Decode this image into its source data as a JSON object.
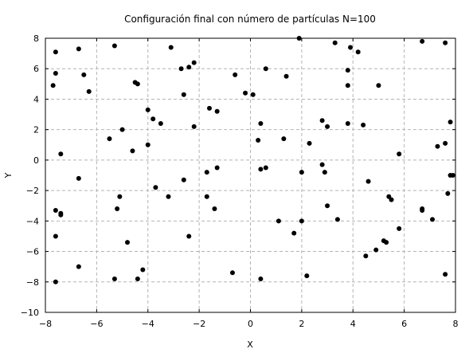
{
  "chart_data": {
    "type": "scatter",
    "title": "Configuración final con número de partículas N=100",
    "xlabel": "X",
    "ylabel": "Y",
    "xlim": [
      -8,
      8
    ],
    "ylim": [
      -10,
      8
    ],
    "xticks": [
      -8,
      -6,
      -4,
      -2,
      0,
      2,
      4,
      6,
      8
    ],
    "yticks": [
      -10,
      -8,
      -6,
      -4,
      -2,
      0,
      2,
      4,
      6,
      8
    ],
    "grid": true,
    "grid_style": "dashed",
    "marker_color": "#000000",
    "points": [
      [
        -7.6,
        7.1
      ],
      [
        -7.6,
        5.7
      ],
      [
        -7.7,
        4.9
      ],
      [
        -6.7,
        7.3
      ],
      [
        -6.5,
        5.6
      ],
      [
        -6.3,
        4.5
      ],
      [
        -5.3,
        7.5
      ],
      [
        -4.5,
        5.1
      ],
      [
        -4.4,
        5.0
      ],
      [
        -3.1,
        7.4
      ],
      [
        -2.7,
        6.0
      ],
      [
        -2.4,
        6.1
      ],
      [
        -2.2,
        6.4
      ],
      [
        -2.6,
        4.3
      ],
      [
        -0.6,
        5.6
      ],
      [
        -0.2,
        4.4
      ],
      [
        0.1,
        4.3
      ],
      [
        0.6,
        6.0
      ],
      [
        1.4,
        5.5
      ],
      [
        1.9,
        8.0
      ],
      [
        3.3,
        7.7
      ],
      [
        3.9,
        7.4
      ],
      [
        4.2,
        7.1
      ],
      [
        3.8,
        5.9
      ],
      [
        3.8,
        4.9
      ],
      [
        5.0,
        4.9
      ],
      [
        6.7,
        7.8
      ],
      [
        7.6,
        7.7
      ],
      [
        -4.0,
        3.3
      ],
      [
        -3.8,
        2.7
      ],
      [
        -3.5,
        2.4
      ],
      [
        -1.6,
        3.4
      ],
      [
        -1.3,
        3.2
      ],
      [
        -2.2,
        2.2
      ],
      [
        0.4,
        2.4
      ],
      [
        0.3,
        1.3
      ],
      [
        1.3,
        1.4
      ],
      [
        2.3,
        1.1
      ],
      [
        2.8,
        2.6
      ],
      [
        3.0,
        2.2
      ],
      [
        3.8,
        2.4
      ],
      [
        4.4,
        2.3
      ],
      [
        7.8,
        2.5
      ],
      [
        7.3,
        0.9
      ],
      [
        7.6,
        1.1
      ],
      [
        5.8,
        0.4
      ],
      [
        -7.4,
        0.4
      ],
      [
        -5.5,
        1.4
      ],
      [
        -5.0,
        2.0
      ],
      [
        -4.6,
        0.6
      ],
      [
        -4.0,
        1.0
      ],
      [
        -7.6,
        -3.3
      ],
      [
        -7.4,
        -3.5
      ],
      [
        -7.4,
        -3.6
      ],
      [
        -6.7,
        -1.2
      ],
      [
        -7.6,
        -5.0
      ],
      [
        -5.1,
        -2.4
      ],
      [
        -5.2,
        -3.2
      ],
      [
        -3.7,
        -1.8
      ],
      [
        -3.2,
        -2.4
      ],
      [
        -2.6,
        -1.3
      ],
      [
        -1.7,
        -0.8
      ],
      [
        -1.7,
        -2.4
      ],
      [
        -1.3,
        -0.5
      ],
      [
        -1.4,
        -3.2
      ],
      [
        -4.8,
        -5.4
      ],
      [
        -2.4,
        -5.0
      ],
      [
        0.4,
        -0.6
      ],
      [
        0.6,
        -0.5
      ],
      [
        2.0,
        -0.8
      ],
      [
        2.8,
        -0.3
      ],
      [
        2.9,
        -0.8
      ],
      [
        4.6,
        -1.4
      ],
      [
        7.8,
        -1.0
      ],
      [
        7.9,
        -1.0
      ],
      [
        7.7,
        -2.2
      ],
      [
        5.4,
        -2.4
      ],
      [
        5.5,
        -2.6
      ],
      [
        1.1,
        -4.0
      ],
      [
        2.0,
        -4.0
      ],
      [
        3.0,
        -3.0
      ],
      [
        3.4,
        -3.9
      ],
      [
        1.7,
        -4.8
      ],
      [
        5.8,
        -4.5
      ],
      [
        6.7,
        -3.2
      ],
      [
        6.7,
        -3.3
      ],
      [
        7.1,
        -3.9
      ],
      [
        5.2,
        -5.3
      ],
      [
        5.3,
        -5.4
      ],
      [
        4.9,
        -5.9
      ],
      [
        4.5,
        -6.3
      ],
      [
        -6.7,
        -7.0
      ],
      [
        -7.6,
        -8.0
      ],
      [
        -5.3,
        -7.8
      ],
      [
        -4.4,
        -7.8
      ],
      [
        -4.2,
        -7.2
      ],
      [
        -0.7,
        -7.4
      ],
      [
        0.4,
        -7.8
      ],
      [
        2.2,
        -7.6
      ],
      [
        7.6,
        -7.5
      ]
    ]
  }
}
